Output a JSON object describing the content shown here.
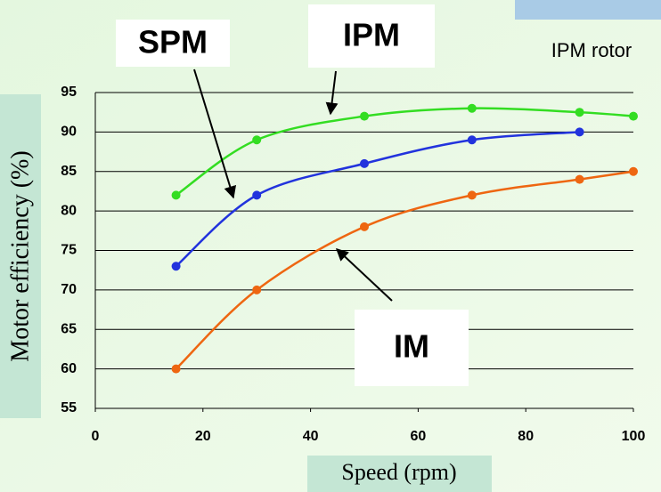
{
  "chart_data": {
    "type": "line",
    "x_label": "Motor efficiency (%)",
    "xlabel": "Speed (rpm)",
    "series": [
      {
        "name": "IPM",
        "color": "#33dd22",
        "x": [
          15,
          30,
          50,
          70,
          90,
          100
        ],
        "values": [
          82,
          89,
          92,
          93,
          92.5,
          92
        ]
      },
      {
        "name": "SPM",
        "color": "#2233dd",
        "x": [
          15,
          30,
          50,
          70,
          90
        ],
        "values": [
          73,
          82,
          86,
          89,
          90
        ]
      },
      {
        "name": "IM",
        "color": "#ee6611",
        "x": [
          15,
          30,
          50,
          70,
          90,
          100
        ],
        "values": [
          60,
          70,
          78,
          82,
          84,
          85
        ]
      }
    ],
    "annotation": "IPM rotor",
    "xlim": [
      0,
      100
    ],
    "xticks": [
      0,
      20,
      40,
      60,
      80,
      100
    ],
    "ylim": [
      55,
      95
    ],
    "yticks": [
      55,
      60,
      65,
      70,
      75,
      80,
      85,
      90,
      95
    ],
    "grid": true
  }
}
